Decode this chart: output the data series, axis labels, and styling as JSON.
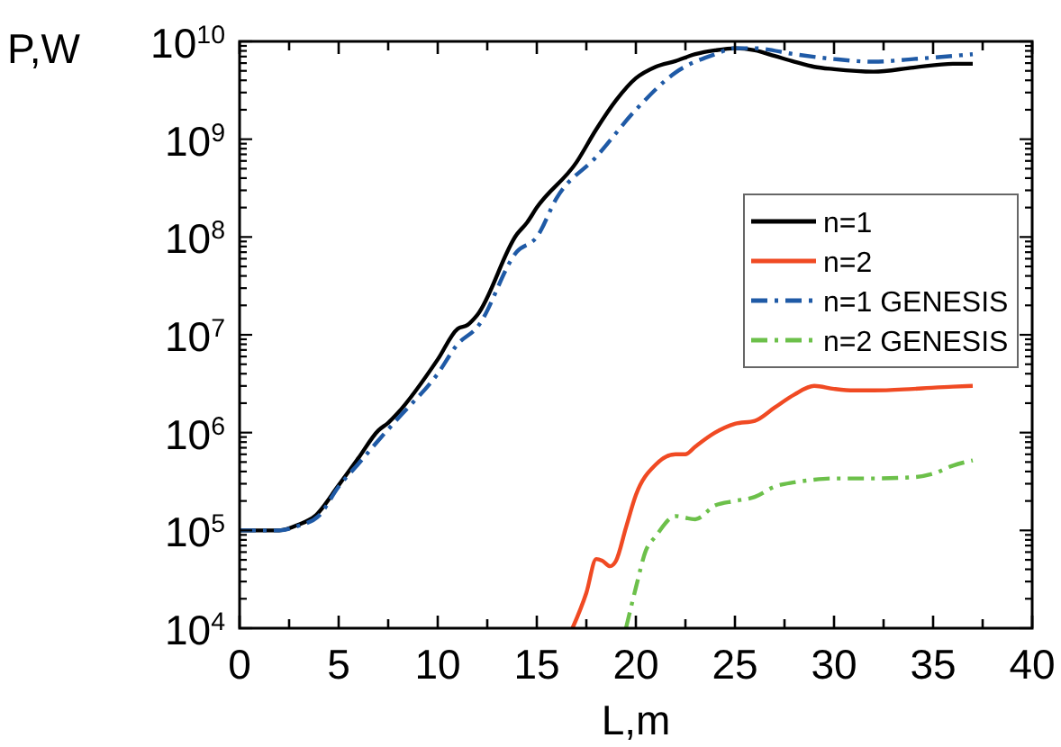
{
  "chart_data": {
    "type": "line",
    "xlabel": "L,m",
    "ylabel": "P,W",
    "log": "y",
    "legend": "right",
    "xlim": [
      0,
      40
    ],
    "ylim": [
      10000,
      10000000000
    ],
    "xticks": [
      0,
      {
        "value": 2.5,
        "label": null
      },
      5,
      {
        "value": 7.5,
        "label": null
      },
      10,
      {
        "value": 12.5,
        "label": null
      },
      15,
      {
        "value": 17.5,
        "label": null
      },
      20,
      {
        "value": 22.5,
        "label": null
      },
      25,
      {
        "value": 27.5,
        "label": null
      },
      30,
      {
        "value": 32.5,
        "label": null
      },
      35,
      {
        "value": 37.5,
        "label": null
      },
      40
    ],
    "yticks": [
      {
        "value": 10000,
        "label": "10$^{4}$"
      },
      {
        "value": 20000,
        "label": null
      },
      {
        "value": 30000,
        "label": null
      },
      {
        "value": 40000,
        "label": null
      },
      {
        "value": 50000,
        "label": null
      },
      {
        "value": 60000,
        "label": null
      },
      {
        "value": 70000,
        "label": null
      },
      {
        "value": 80000,
        "label": null
      },
      {
        "value": 90000,
        "label": null
      },
      {
        "value": 100000,
        "label": "10$^{5}$"
      },
      {
        "value": 200000,
        "label": null
      },
      {
        "value": 300000,
        "label": null
      },
      {
        "value": 400000,
        "label": null
      },
      {
        "value": 500000,
        "label": null
      },
      {
        "value": 600000,
        "label": null
      },
      {
        "value": 700000,
        "label": null
      },
      {
        "value": 800000,
        "label": null
      },
      {
        "value": 900000,
        "label": null
      },
      {
        "value": 1000000,
        "label": "10$^{6}$"
      },
      {
        "value": 2000000,
        "label": null
      },
      {
        "value": 3000000,
        "label": null
      },
      {
        "value": 4000000,
        "label": null
      },
      {
        "value": 5000000,
        "label": null
      },
      {
        "value": 6000000,
        "label": null
      },
      {
        "value": 7000000,
        "label": null
      },
      {
        "value": 8000000,
        "label": null
      },
      {
        "value": 9000000,
        "label": null
      },
      {
        "value": 10000000,
        "label": "10$^{7}$"
      },
      {
        "value": 20000000,
        "label": null
      },
      {
        "value": 30000000,
        "label": null
      },
      {
        "value": 40000000,
        "label": null
      },
      {
        "value": 50000000,
        "label": null
      },
      {
        "value": 60000000,
        "label": null
      },
      {
        "value": 70000000,
        "label": null
      },
      {
        "value": 80000000,
        "label": null
      },
      {
        "value": 90000000,
        "label": null
      },
      {
        "value": 100000000,
        "label": "10$^{8}$"
      },
      {
        "value": 200000000,
        "label": null
      },
      {
        "value": 300000000,
        "label": null
      },
      {
        "value": 400000000,
        "label": null
      },
      {
        "value": 500000000,
        "label": null
      },
      {
        "value": 600000000,
        "label": null
      },
      {
        "value": 700000000,
        "label": null
      },
      {
        "value": 800000000,
        "label": null
      },
      {
        "value": 900000000,
        "label": null
      },
      {
        "value": 1000000000,
        "label": "10$^{9}$"
      },
      {
        "value": 2000000000,
        "label": null
      },
      {
        "value": 3000000000,
        "label": null
      },
      {
        "value": 4000000000,
        "label": null
      },
      {
        "value": 5000000000,
        "label": null
      },
      {
        "value": 6000000000,
        "label": null
      },
      {
        "value": 7000000000,
        "label": null
      },
      {
        "value": 8000000000,
        "label": null
      },
      {
        "value": 9000000000,
        "label": null
      },
      {
        "value": 10000000000,
        "label": "10$^{10}$"
      }
    ],
    "series": [
      {
        "name": "n=1",
        "color": "#000000",
        "line_style": "solid",
        "x": [
          0,
          2,
          3,
          3.8,
          5,
          6,
          7,
          7.5,
          8,
          10,
          11,
          11.5,
          12,
          14,
          14.5,
          15,
          17,
          18,
          19,
          20,
          21,
          22,
          23,
          24,
          25,
          26,
          27,
          28,
          29,
          30,
          32,
          34,
          36,
          37
        ],
        "values": [
          100000.0,
          100000.0,
          115000.0,
          140000.0,
          290000.0,
          550000.0,
          1050000.0,
          1260000.0,
          1600000.0,
          5600000.0,
          11500000.0,
          12600000.0,
          16000000.0,
          107000000.0,
          140000000.0,
          200000000.0,
          580000000.0,
          1260000000.0,
          2500000000.0,
          4200000000.0,
          5500000000.0,
          6300000000.0,
          7400000000.0,
          8100000000.0,
          8500000000.0,
          8100000000.0,
          7100000000.0,
          6200000000.0,
          5500000000.0,
          5200000000.0,
          4900000000.0,
          5400000000.0,
          5900000000.0,
          5900000000.0
        ]
      },
      {
        "name": "n=2",
        "color": "#f04a23",
        "line_style": "solid",
        "x": [
          16.8,
          17.5,
          18,
          18.3,
          18.7,
          19,
          19.5,
          20,
          21,
          22,
          22.5,
          23,
          24,
          25,
          26,
          27,
          28,
          29,
          30,
          31,
          32,
          34,
          36,
          37
        ],
        "values": [
          10000.0,
          23000.0,
          51000.0,
          49000.0,
          43000.0,
          49000.0,
          107000.0,
          230000.0,
          470000.0,
          600000.0,
          600000.0,
          720000.0,
          1000000.0,
          1230000.0,
          1320000.0,
          1800000.0,
          2450000.0,
          3000000.0,
          2800000.0,
          2700000.0,
          2700000.0,
          2800000.0,
          2950000.0,
          3000000.0
        ]
      },
      {
        "name": "n=1 GENESIS",
        "color": "#1f5aa6",
        "line_style": "dashed",
        "x": [
          0,
          2,
          3,
          4,
          5,
          6,
          7,
          8,
          10,
          11,
          12,
          14,
          15,
          16,
          18,
          20,
          22,
          24,
          25,
          26,
          28,
          30,
          32,
          34,
          36,
          37
        ],
        "values": [
          100000.0,
          100000.0,
          112000.0,
          141000.0,
          280000.0,
          480000.0,
          830000.0,
          1400000.0,
          4000000.0,
          8000000.0,
          12000000.0,
          71000000.0,
          100000000.0,
          250000000.0,
          660000000.0,
          2000000000.0,
          4800000000.0,
          7400000000.0,
          8500000000.0,
          8500000000.0,
          7400000000.0,
          6600000000.0,
          6200000000.0,
          6600000000.0,
          7100000000.0,
          7400000000.0
        ]
      },
      {
        "name": "n=2 GENESIS",
        "color": "#6cc04a",
        "line_style": "dashed",
        "x": [
          19.5,
          20,
          20.5,
          21,
          22,
          23,
          24,
          25,
          26,
          27,
          28,
          29,
          30,
          32,
          34,
          35,
          36,
          37
        ],
        "values": [
          10000.0,
          26000.0,
          62000.0,
          87000.0,
          140000.0,
          130000.0,
          180000.0,
          200000.0,
          220000.0,
          280000.0,
          310000.0,
          330000.0,
          340000.0,
          340000.0,
          350000.0,
          380000.0,
          460000.0,
          520000.0
        ]
      }
    ]
  }
}
